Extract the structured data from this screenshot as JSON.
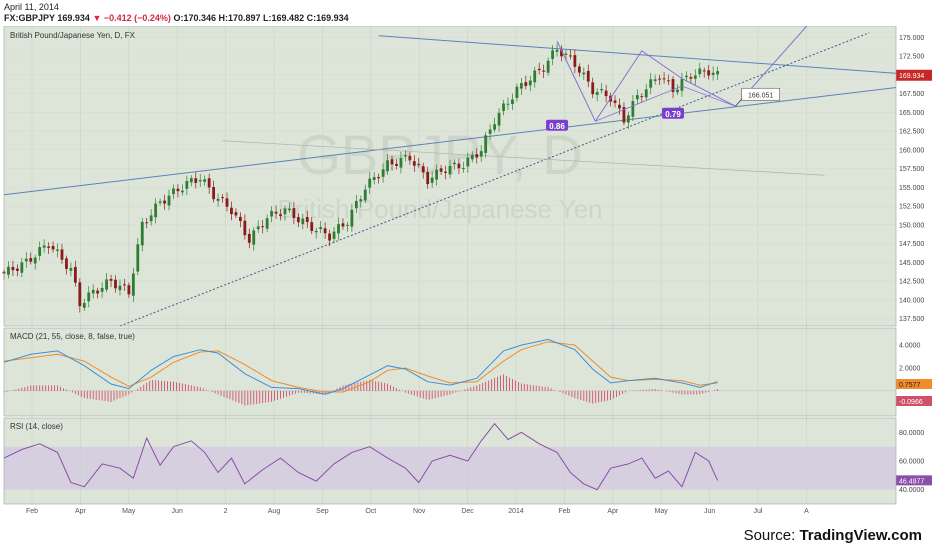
{
  "header": {
    "date": "April 11, 2014",
    "symbol": "FX:GBPJPY",
    "last": "169.934",
    "change": "−0.412 (−0.24%)",
    "open": "O:170.346",
    "high": "H:170.897",
    "low": "L:169.482",
    "close": "C:169.934"
  },
  "footer": {
    "source_label": "Source: ",
    "source_brand": "TradingView.com"
  },
  "colors": {
    "panel_bg": "#dde5d9",
    "rsi_band": "#d6cfe0",
    "candle_up": "#2e7d32",
    "candle_down": "#8b1a1a",
    "trend": "#5b83b8",
    "pattern": "#8a6fd6",
    "macd": "#3f8fd4",
    "signal": "#f08c2a",
    "hist": "#d0506a",
    "rsi": "#8a4fa8",
    "badge": "#7b3fcf",
    "price_tag": "#c62828"
  },
  "chart_data": [
    {
      "type": "candlestick",
      "title": "British Pound/Japanese Yen, D, FX",
      "watermark_symbol": "GBPJPY, D",
      "watermark_name": "British Pound/Japanese Yen",
      "ylim": [
        136.5,
        176.5
      ],
      "y_ticks": [
        "175.000",
        "172.500",
        "170.000",
        "167.500",
        "165.000",
        "162.500",
        "160.000",
        "157.500",
        "155.000",
        "152.500",
        "150.000",
        "147.500",
        "145.000",
        "142.500",
        "140.000",
        "137.500"
      ],
      "x_ticks": [
        "Feb",
        "Apr",
        "May",
        "Jun",
        "2",
        "Aug",
        "Sep",
        "Oct",
        "Nov",
        "Dec",
        "2014",
        "Feb",
        "Apr",
        "May",
        "Jun",
        "Jul",
        "A"
      ],
      "price_tag": "169.934",
      "annotations": {
        "retrace_1": "0.86",
        "retrace_2": "0.79",
        "target": "166.051"
      },
      "close_path": [
        {
          "x": 0,
          "y": 143.5
        },
        {
          "x": 2.5,
          "y": 145
        },
        {
          "x": 5,
          "y": 147.5
        },
        {
          "x": 7.5,
          "y": 144
        },
        {
          "x": 8.5,
          "y": 139.5
        },
        {
          "x": 10,
          "y": 141
        },
        {
          "x": 12,
          "y": 142.5
        },
        {
          "x": 14,
          "y": 141
        },
        {
          "x": 15.5,
          "y": 150
        },
        {
          "x": 17.5,
          "y": 153
        },
        {
          "x": 20.5,
          "y": 155.5
        },
        {
          "x": 22,
          "y": 156.3
        },
        {
          "x": 23.5,
          "y": 154
        },
        {
          "x": 25.5,
          "y": 152
        },
        {
          "x": 27.5,
          "y": 148
        },
        {
          "x": 29.5,
          "y": 151
        },
        {
          "x": 31.5,
          "y": 152
        },
        {
          "x": 34,
          "y": 150
        },
        {
          "x": 36.5,
          "y": 148.5
        },
        {
          "x": 38.5,
          "y": 150.5
        },
        {
          "x": 40.5,
          "y": 155
        },
        {
          "x": 43,
          "y": 158
        },
        {
          "x": 45.5,
          "y": 159
        },
        {
          "x": 47.5,
          "y": 156
        },
        {
          "x": 49.5,
          "y": 157.5
        },
        {
          "x": 51.5,
          "y": 158
        },
        {
          "x": 53.5,
          "y": 160
        },
        {
          "x": 55,
          "y": 164
        },
        {
          "x": 57.5,
          "y": 168
        },
        {
          "x": 60.5,
          "y": 171
        },
        {
          "x": 62,
          "y": 173.5
        },
        {
          "x": 64,
          "y": 171.5
        },
        {
          "x": 66,
          "y": 168
        },
        {
          "x": 68,
          "y": 167
        },
        {
          "x": 69.5,
          "y": 164
        },
        {
          "x": 71,
          "y": 167
        },
        {
          "x": 73.5,
          "y": 170
        },
        {
          "x": 75,
          "y": 168
        },
        {
          "x": 77,
          "y": 170
        },
        {
          "x": 79,
          "y": 170.5
        },
        {
          "x": 80,
          "y": 169.9
        }
      ],
      "trendlines": [
        {
          "from": [
            0,
            154.0
          ],
          "to": [
            100,
            168.3
          ],
          "style": "solid"
        },
        {
          "from": [
            42,
            175.2
          ],
          "to": [
            100,
            170.2
          ],
          "style": "solid"
        },
        {
          "from": [
            13,
            136.5
          ],
          "to": [
            97,
            175.6
          ],
          "style": "dotted"
        },
        {
          "from": [
            24.5,
            161.2
          ],
          "to": [
            92,
            156.6
          ],
          "style": "thin"
        }
      ],
      "pattern": [
        [
          62,
          174.5
        ],
        [
          66.3,
          163.8
        ],
        [
          71.5,
          173.2
        ],
        [
          76,
          169.5
        ],
        [
          82,
          165.8
        ],
        [
          90,
          176.5
        ]
      ],
      "pattern_leg": [
        [
          66.3,
          163.8
        ],
        [
          76,
          168.5
        ],
        [
          82,
          165.8
        ]
      ]
    },
    {
      "type": "line",
      "title": "MACD (21, 55, close, 8, false, true)",
      "ylim": [
        -2.2,
        5.5
      ],
      "y_ticks": [
        "4.0000",
        "2.0000"
      ],
      "value_tags": [
        "0.7577",
        "-0.0966"
      ],
      "series": [
        {
          "values": [
            {
              "x": 0,
              "y": 2.5
            },
            {
              "x": 3,
              "y": 3.2
            },
            {
              "x": 6,
              "y": 3.5
            },
            {
              "x": 9,
              "y": 2.2
            },
            {
              "x": 12,
              "y": 0.6
            },
            {
              "x": 14,
              "y": 0.2
            },
            {
              "x": 16.5,
              "y": 1.8
            },
            {
              "x": 19,
              "y": 3.0
            },
            {
              "x": 22,
              "y": 3.6
            },
            {
              "x": 24,
              "y": 3.3
            },
            {
              "x": 27,
              "y": 1.5
            },
            {
              "x": 30,
              "y": 0.3
            },
            {
              "x": 33,
              "y": 0.2
            },
            {
              "x": 36,
              "y": -0.3
            },
            {
              "x": 38,
              "y": 0.2
            },
            {
              "x": 41,
              "y": 1.4
            },
            {
              "x": 43,
              "y": 2.2
            },
            {
              "x": 45,
              "y": 1.9
            },
            {
              "x": 47.5,
              "y": 0.8
            },
            {
              "x": 50,
              "y": 0.5
            },
            {
              "x": 53,
              "y": 1.1
            },
            {
              "x": 56,
              "y": 3.5
            },
            {
              "x": 58,
              "y": 4.0
            },
            {
              "x": 61,
              "y": 4.5
            },
            {
              "x": 64,
              "y": 3.6
            },
            {
              "x": 66,
              "y": 1.9
            },
            {
              "x": 68,
              "y": 0.7
            },
            {
              "x": 70,
              "y": 0.9
            },
            {
              "x": 73,
              "y": 1.1
            },
            {
              "x": 76,
              "y": 0.7
            },
            {
              "x": 78,
              "y": 0.3
            },
            {
              "x": 80,
              "y": 0.8
            }
          ]
        },
        {
          "values": [
            {
              "x": 0,
              "y": 2.6
            },
            {
              "x": 3,
              "y": 2.9
            },
            {
              "x": 6,
              "y": 3.2
            },
            {
              "x": 9,
              "y": 2.6
            },
            {
              "x": 12,
              "y": 1.2
            },
            {
              "x": 14,
              "y": 0.4
            },
            {
              "x": 16.5,
              "y": 1.2
            },
            {
              "x": 19,
              "y": 2.5
            },
            {
              "x": 22,
              "y": 3.4
            },
            {
              "x": 24,
              "y": 3.5
            },
            {
              "x": 27,
              "y": 2.3
            },
            {
              "x": 30,
              "y": 0.9
            },
            {
              "x": 33,
              "y": 0.3
            },
            {
              "x": 36,
              "y": -0.1
            },
            {
              "x": 38,
              "y": -0.1
            },
            {
              "x": 41,
              "y": 0.8
            },
            {
              "x": 43,
              "y": 1.8
            },
            {
              "x": 45,
              "y": 2.0
            },
            {
              "x": 47.5,
              "y": 1.3
            },
            {
              "x": 50,
              "y": 0.7
            },
            {
              "x": 53,
              "y": 0.8
            },
            {
              "x": 56,
              "y": 2.6
            },
            {
              "x": 58,
              "y": 3.6
            },
            {
              "x": 61,
              "y": 4.3
            },
            {
              "x": 64,
              "y": 4.0
            },
            {
              "x": 66,
              "y": 2.6
            },
            {
              "x": 68,
              "y": 1.2
            },
            {
              "x": 70,
              "y": 0.9
            },
            {
              "x": 73,
              "y": 1.0
            },
            {
              "x": 76,
              "y": 0.9
            },
            {
              "x": 78,
              "y": 0.5
            },
            {
              "x": 80,
              "y": 0.7
            }
          ]
        }
      ]
    },
    {
      "type": "line",
      "title": "RSI (14, close)",
      "ylim": [
        30,
        90
      ],
      "band": [
        40,
        70
      ],
      "y_ticks": [
        "80.0000",
        "60.0000",
        "40.0000"
      ],
      "value_tag": "46.4977",
      "series": [
        {
          "values": [
            {
              "x": 0,
              "y": 62
            },
            {
              "x": 2,
              "y": 68
            },
            {
              "x": 4,
              "y": 72
            },
            {
              "x": 6,
              "y": 66
            },
            {
              "x": 7.5,
              "y": 45
            },
            {
              "x": 9,
              "y": 42
            },
            {
              "x": 11,
              "y": 58
            },
            {
              "x": 13,
              "y": 55
            },
            {
              "x": 14.5,
              "y": 48
            },
            {
              "x": 16,
              "y": 76
            },
            {
              "x": 17.5,
              "y": 57
            },
            {
              "x": 19,
              "y": 70
            },
            {
              "x": 21,
              "y": 74
            },
            {
              "x": 22.5,
              "y": 66
            },
            {
              "x": 24,
              "y": 52
            },
            {
              "x": 25.5,
              "y": 62
            },
            {
              "x": 27,
              "y": 44
            },
            {
              "x": 29,
              "y": 54
            },
            {
              "x": 31,
              "y": 62
            },
            {
              "x": 33,
              "y": 52
            },
            {
              "x": 35,
              "y": 46
            },
            {
              "x": 37,
              "y": 58
            },
            {
              "x": 39,
              "y": 66
            },
            {
              "x": 41,
              "y": 70
            },
            {
              "x": 43,
              "y": 62
            },
            {
              "x": 45,
              "y": 55
            },
            {
              "x": 46.5,
              "y": 45
            },
            {
              "x": 48,
              "y": 60
            },
            {
              "x": 50,
              "y": 64
            },
            {
              "x": 52,
              "y": 60
            },
            {
              "x": 53.5,
              "y": 74
            },
            {
              "x": 55,
              "y": 86
            },
            {
              "x": 56.5,
              "y": 75
            },
            {
              "x": 58,
              "y": 80
            },
            {
              "x": 60,
              "y": 72
            },
            {
              "x": 62,
              "y": 66
            },
            {
              "x": 63.5,
              "y": 52
            },
            {
              "x": 65,
              "y": 44
            },
            {
              "x": 66.5,
              "y": 40
            },
            {
              "x": 68,
              "y": 55
            },
            {
              "x": 70,
              "y": 58
            },
            {
              "x": 71.5,
              "y": 62
            },
            {
              "x": 73,
              "y": 48
            },
            {
              "x": 74.5,
              "y": 53
            },
            {
              "x": 76,
              "y": 42
            },
            {
              "x": 77.5,
              "y": 66
            },
            {
              "x": 79,
              "y": 60
            },
            {
              "x": 80,
              "y": 46.5
            }
          ]
        }
      ]
    }
  ]
}
